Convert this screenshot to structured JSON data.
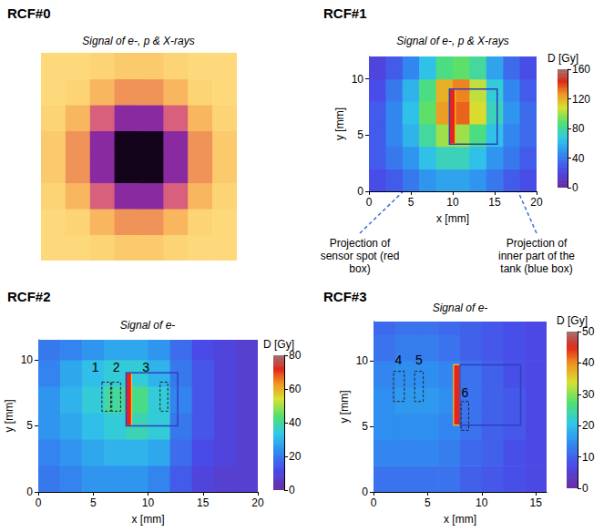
{
  "chart_data": [
    {
      "type": "heatmap",
      "title": "RCF#0",
      "subtitle": "Signal of e-, p & X-rays",
      "tick_labels": false,
      "grid": false,
      "xlim": [
        0,
        8
      ],
      "ylim": [
        0,
        8
      ],
      "cells": {
        "x": [
          0.5,
          1.5,
          2.5,
          3.5,
          4.5,
          5.5,
          6.5,
          7.5
        ],
        "y": [
          0.5,
          1.5,
          2.5,
          3.5,
          4.5,
          5.5,
          6.5,
          7.5
        ],
        "z": [
          [
            15,
            15,
            18,
            22,
            22,
            18,
            15,
            15
          ],
          [
            15,
            18,
            28,
            38,
            38,
            28,
            18,
            15
          ],
          [
            18,
            28,
            50,
            70,
            70,
            50,
            28,
            18
          ],
          [
            22,
            38,
            70,
            95,
            95,
            70,
            38,
            22
          ],
          [
            22,
            38,
            70,
            95,
            95,
            70,
            38,
            22
          ],
          [
            18,
            28,
            50,
            70,
            70,
            50,
            28,
            18
          ],
          [
            15,
            18,
            28,
            38,
            38,
            28,
            18,
            15
          ],
          [
            15,
            15,
            18,
            22,
            22,
            18,
            15,
            15
          ]
        ],
        "zlim": [
          0,
          100
        ]
      }
    },
    {
      "type": "heatmap",
      "title": "RCF#1",
      "subtitle": "Signal of e-, p & X-rays",
      "xlabel": "x [mm]",
      "ylabel": "y [mm]",
      "grid": false,
      "xlim": [
        0,
        20
      ],
      "ylim": [
        0,
        12
      ],
      "xticks": [
        0,
        5,
        10,
        15,
        20
      ],
      "yticks": [
        0,
        5,
        10
      ],
      "cells": {
        "x": [
          1,
          3,
          5,
          7,
          9,
          11,
          13,
          15,
          17,
          19
        ],
        "y": [
          1,
          3,
          5,
          7,
          9,
          11
        ],
        "z": [
          [
            25,
            30,
            40,
            50,
            55,
            55,
            50,
            40,
            30,
            25
          ],
          [
            30,
            40,
            50,
            65,
            75,
            75,
            65,
            50,
            40,
            30
          ],
          [
            30,
            45,
            60,
            80,
            100,
            100,
            85,
            65,
            45,
            35
          ],
          [
            30,
            45,
            65,
            90,
            125,
            135,
            110,
            75,
            50,
            35
          ],
          [
            25,
            40,
            60,
            85,
            120,
            130,
            105,
            70,
            45,
            30
          ],
          [
            20,
            30,
            45,
            65,
            85,
            90,
            80,
            55,
            35,
            25
          ]
        ]
      },
      "colorbar": {
        "title": "D [Gy]",
        "range": [
          0,
          160
        ],
        "ticks": [
          0,
          40,
          80,
          120,
          160
        ]
      },
      "boxes": [
        {
          "type": "filled",
          "color": "#e8231e",
          "x": [
            9.6,
            10.3
          ],
          "y": [
            4.2,
            9.1
          ],
          "annotation": "Projection of sensor spot (red box)"
        },
        {
          "type": "outline",
          "line_style": "solid",
          "color": "#2f3fbf",
          "x": [
            9.6,
            15.3
          ],
          "y": [
            4.2,
            9.1
          ],
          "annotation": "Projection of inner part of the tank (blue box)"
        }
      ]
    },
    {
      "type": "heatmap",
      "title": "RCF#2",
      "subtitle": "Signal of e-",
      "xlabel": "x [mm]",
      "ylabel": "y [mm]",
      "grid": false,
      "xlim": [
        0,
        20
      ],
      "ylim": [
        0,
        11.5
      ],
      "xticks": [
        0,
        5,
        10,
        15,
        20
      ],
      "yticks": [
        0,
        5,
        10
      ],
      "cells": {
        "x": [
          1,
          3,
          5,
          7,
          9,
          11,
          13,
          15,
          17,
          19
        ],
        "y": [
          1,
          3,
          5,
          7,
          9,
          11
        ],
        "z": [
          [
            20,
            22,
            25,
            25,
            25,
            22,
            15,
            10,
            8,
            8
          ],
          [
            22,
            25,
            28,
            30,
            30,
            28,
            18,
            12,
            10,
            8
          ],
          [
            25,
            28,
            32,
            35,
            38,
            35,
            20,
            14,
            10,
            8
          ],
          [
            25,
            30,
            35,
            40,
            42,
            35,
            22,
            14,
            10,
            8
          ],
          [
            22,
            28,
            32,
            35,
            35,
            30,
            20,
            14,
            10,
            8
          ],
          [
            20,
            22,
            25,
            28,
            28,
            25,
            18,
            12,
            10,
            8
          ]
        ]
      },
      "colorbar": {
        "title": "D [Gy]",
        "range": [
          0,
          80
        ],
        "ticks": [
          0,
          20,
          40,
          60,
          80
        ]
      },
      "boxes": [
        {
          "type": "filled",
          "color": "#e8231e",
          "x": [
            8.0,
            8.5
          ],
          "y": [
            5.0,
            9.0
          ]
        },
        {
          "type": "outline",
          "line_style": "solid",
          "color": "#2f3fbf",
          "x": [
            8.0,
            12.7
          ],
          "y": [
            5.0,
            9.0
          ]
        },
        {
          "type": "outline",
          "line_style": "dashed",
          "color": "#222222",
          "x": [
            5.8,
            6.6
          ],
          "y": [
            6.1,
            8.3
          ],
          "label": "1",
          "label_at": [
            5.2,
            9.4
          ]
        },
        {
          "type": "outline",
          "line_style": "dashed",
          "color": "#222222",
          "x": [
            6.7,
            7.5
          ],
          "y": [
            6.1,
            8.3
          ],
          "label": "2",
          "label_at": [
            7.1,
            9.4
          ]
        },
        {
          "type": "outline",
          "line_style": "dashed",
          "color": "#222222",
          "x": [
            11.1,
            11.8
          ],
          "y": [
            6.1,
            8.3
          ],
          "label": "3",
          "label_at": [
            9.8,
            9.4
          ]
        }
      ]
    },
    {
      "type": "heatmap",
      "title": "RCF#3",
      "subtitle": "Signal of e-",
      "xlabel": "x [mm]",
      "ylabel": "y [mm]",
      "grid": false,
      "xlim": [
        0,
        16
      ],
      "ylim": [
        0,
        13
      ],
      "xticks": [
        0,
        5,
        10,
        15
      ],
      "yticks": [
        0,
        5,
        10
      ],
      "cells": {
        "x": [
          1,
          3,
          5,
          7,
          9,
          11,
          13,
          15,
          17
        ],
        "y": [
          1,
          3,
          5,
          7,
          9,
          11,
          13
        ],
        "z": [
          [
            12,
            12,
            12,
            12,
            10,
            9,
            8,
            7,
            6
          ],
          [
            14,
            14,
            14,
            13,
            11,
            10,
            8,
            7,
            6
          ],
          [
            15,
            15,
            15,
            14,
            12,
            10,
            9,
            7,
            6
          ],
          [
            15,
            16,
            16,
            15,
            12,
            10,
            9,
            7,
            6
          ],
          [
            14,
            15,
            15,
            14,
            12,
            10,
            8,
            7,
            6
          ],
          [
            12,
            13,
            13,
            12,
            10,
            9,
            8,
            7,
            6
          ],
          [
            11,
            12,
            12,
            11,
            10,
            9,
            8,
            7,
            6
          ]
        ]
      },
      "colorbar": {
        "title": "D [Gy]",
        "range": [
          0,
          50
        ],
        "ticks": [
          0,
          10,
          20,
          30,
          40,
          50
        ]
      },
      "boxes": [
        {
          "type": "filled",
          "color": "#e8231e",
          "x": [
            7.4,
            8.0
          ],
          "y": [
            5.1,
            9.7
          ]
        },
        {
          "type": "outline",
          "line_style": "solid",
          "color": "#2f3fbf",
          "x": [
            8.0,
            13.6
          ],
          "y": [
            5.1,
            9.7
          ]
        },
        {
          "type": "outline",
          "line_style": "dashed",
          "color": "#222222",
          "x": [
            1.85,
            2.85
          ],
          "y": [
            6.9,
            9.2
          ],
          "label": "4",
          "label_at": [
            2.3,
            10.1
          ]
        },
        {
          "type": "outline",
          "line_style": "dashed",
          "color": "#222222",
          "x": [
            3.8,
            4.6
          ],
          "y": [
            6.9,
            9.2
          ],
          "label": "5",
          "label_at": [
            4.2,
            10.1
          ]
        },
        {
          "type": "outline",
          "line_style": "dashed",
          "color": "#222222",
          "x": [
            8.1,
            8.8
          ],
          "y": [
            4.7,
            6.9
          ],
          "label": "6",
          "label_at": [
            8.45,
            7.6
          ]
        }
      ]
    }
  ]
}
